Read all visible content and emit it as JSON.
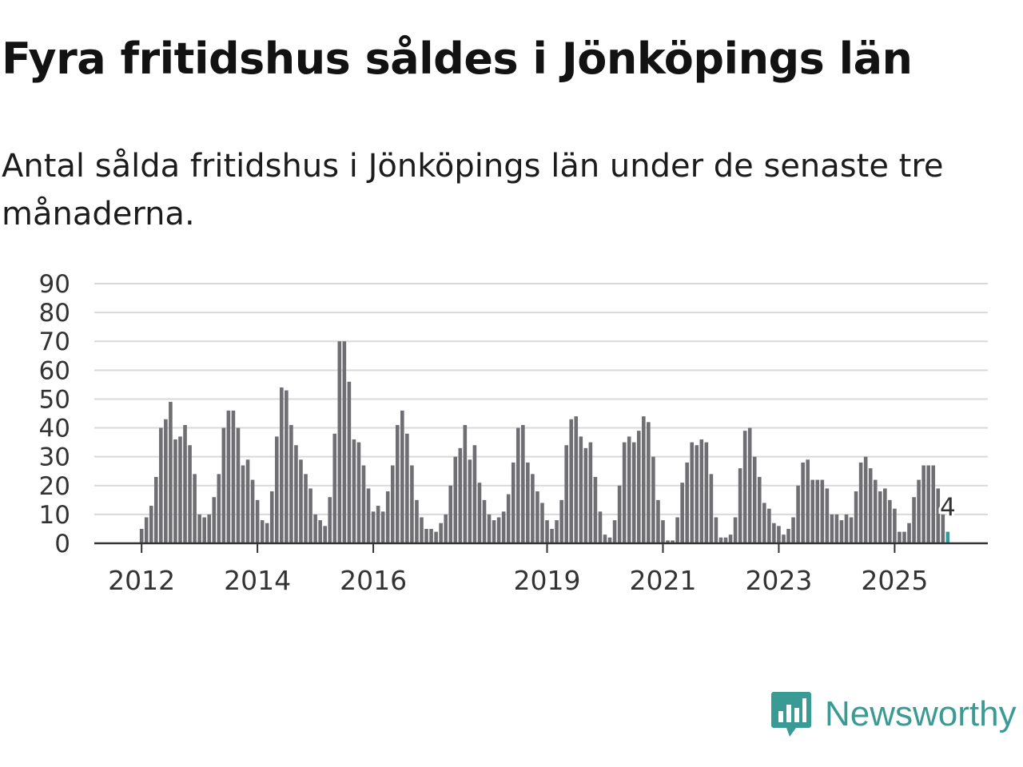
{
  "header": {
    "title": "Fyra fritidshus såldes i Jönköpings län",
    "subtitle": "Antal sålda fritidshus i Jönköpings län under de senaste tre månaderna."
  },
  "brand": {
    "name": "Newsworthy",
    "color": "#3a9b94"
  },
  "colors": {
    "bar": "#6f6e73",
    "highlight": "#2e9e98",
    "grid": "#d9d9d9",
    "axis": "#333333"
  },
  "chart_data": {
    "type": "bar",
    "title": "Fyra fritidshus såldes i Jönköpings län",
    "xlabel": "",
    "ylabel": "",
    "ylim": [
      0,
      90
    ],
    "yticks": [
      "0",
      "10",
      "20",
      "30",
      "40",
      "50",
      "60",
      "70",
      "80",
      "90"
    ],
    "xticks": [
      {
        "label": "2012",
        "index": 9
      },
      {
        "label": "2014",
        "index": 33
      },
      {
        "label": "2016",
        "index": 57
      },
      {
        "label": "2019",
        "index": 93
      },
      {
        "label": "2021",
        "index": 117
      },
      {
        "label": "2023",
        "index": 141
      },
      {
        "label": "2025",
        "index": 165
      }
    ],
    "highlight_label": "4",
    "values": [
      0,
      0,
      0,
      0,
      0,
      0,
      0,
      0,
      0,
      5,
      9,
      13,
      23,
      40,
      43,
      49,
      36,
      37,
      41,
      34,
      24,
      10,
      9,
      10,
      16,
      24,
      40,
      46,
      46,
      40,
      27,
      29,
      22,
      15,
      8,
      7,
      18,
      37,
      54,
      53,
      41,
      34,
      29,
      24,
      19,
      10,
      8,
      6,
      16,
      38,
      70,
      70,
      56,
      36,
      35,
      27,
      19,
      11,
      13,
      11,
      18,
      27,
      41,
      46,
      38,
      27,
      15,
      9,
      5,
      5,
      4,
      7,
      10,
      20,
      30,
      33,
      41,
      29,
      34,
      21,
      15,
      10,
      8,
      9,
      11,
      17,
      28,
      40,
      41,
      28,
      24,
      18,
      14,
      8,
      5,
      8,
      15,
      34,
      43,
      44,
      37,
      33,
      35,
      23,
      11,
      3,
      2,
      8,
      20,
      35,
      37,
      35,
      39,
      44,
      42,
      30,
      15,
      8,
      1,
      1,
      9,
      21,
      28,
      35,
      34,
      36,
      35,
      24,
      9,
      2,
      2,
      3,
      9,
      26,
      39,
      40,
      30,
      23,
      14,
      12,
      7,
      6,
      3,
      5,
      9,
      20,
      28,
      29,
      22,
      22,
      22,
      19,
      10,
      10,
      8,
      10,
      9,
      18,
      28,
      30,
      26,
      22,
      18,
      19,
      15,
      12,
      4,
      4,
      7,
      16,
      22,
      27,
      27,
      27,
      19,
      10,
      4
    ]
  }
}
